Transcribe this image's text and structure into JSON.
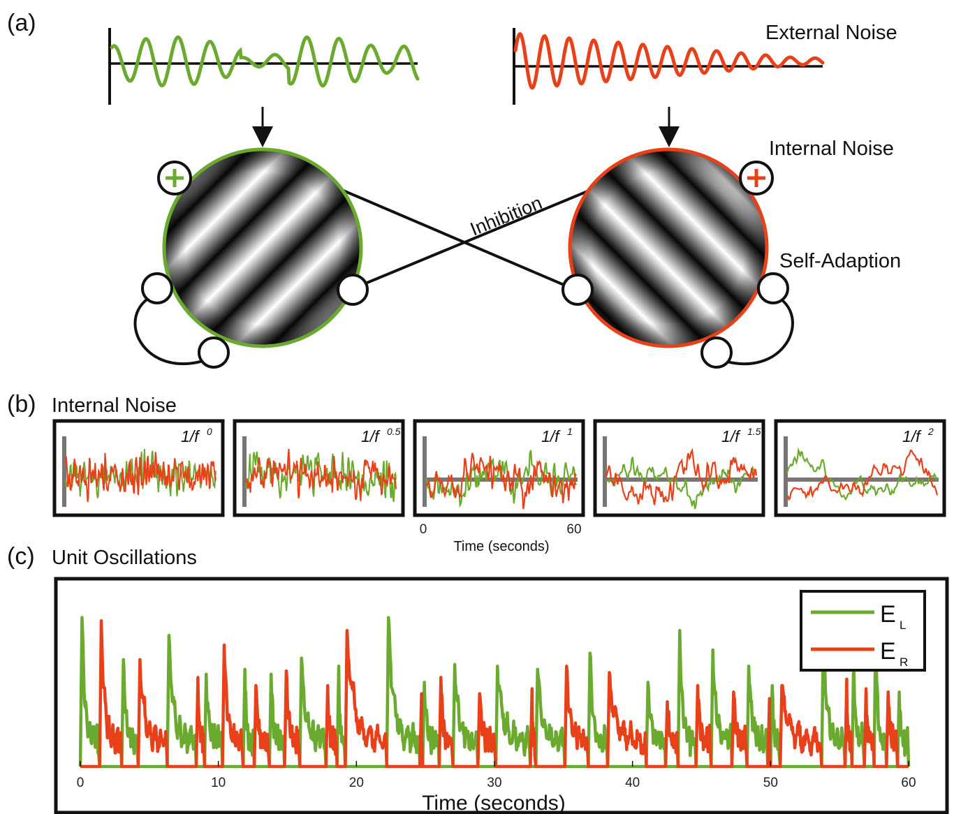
{
  "colors": {
    "left": "#6aaa2e",
    "right": "#e8411a",
    "axis": "#7a7472",
    "black": "#111111"
  },
  "panel_a": {
    "letter": "(a)",
    "external_noise": "External Noise",
    "internal_noise": "Internal Noise",
    "self_adaption": "Self-Adaption",
    "inhibition": "Inhibition",
    "plus": "+"
  },
  "panel_b": {
    "letter": "(b)",
    "title": "Internal Noise",
    "boxes": [
      {
        "base": "1/f",
        "exponent": "0"
      },
      {
        "base": "1/f",
        "exponent": "0.5"
      },
      {
        "base": "1/f",
        "exponent": "1"
      },
      {
        "base": "1/f",
        "exponent": "1.5"
      },
      {
        "base": "1/f",
        "exponent": "2"
      }
    ],
    "x_ticks": [
      "0",
      "60"
    ],
    "xlabel": "Time (seconds)"
  },
  "panel_c": {
    "letter": "(c)",
    "title": "Unit Oscillations",
    "xlabel": "Time (seconds)",
    "legend": [
      {
        "main": "E",
        "sub": "L",
        "color": "#6aaa2e"
      },
      {
        "main": "E",
        "sub": "R",
        "color": "#e8411a"
      }
    ]
  },
  "chart_data": {
    "type": "line",
    "xlabel": "Time (seconds)",
    "ylabel": "",
    "xlim": [
      0,
      60
    ],
    "x_ticks": [
      0,
      10,
      20,
      30,
      40,
      50,
      60
    ],
    "legend_position": "top-right",
    "series": [
      {
        "name": "E_L",
        "color": "#6aaa2e",
        "dominance_periods": [
          [
            0.0,
            1.4
          ],
          [
            3.0,
            4.2
          ],
          [
            6.3,
            8.4
          ],
          [
            9.0,
            10.3
          ],
          [
            11.8,
            12.6
          ],
          [
            13.7,
            14.8
          ],
          [
            15.9,
            17.8
          ],
          [
            18.6,
            19.2
          ],
          [
            22.2,
            24.6
          ],
          [
            24.8,
            26.0
          ],
          [
            27.0,
            28.8
          ],
          [
            30.1,
            32.6
          ],
          [
            33.0,
            35.1
          ],
          [
            36.8,
            38.2
          ],
          [
            41.0,
            42.4
          ],
          [
            43.3,
            44.6
          ],
          [
            45.7,
            47.2
          ],
          [
            48.3,
            49.8
          ],
          [
            50.0,
            50.7
          ],
          [
            53.7,
            55.4
          ],
          [
            55.9,
            56.8
          ],
          [
            57.5,
            58.4
          ],
          [
            59.2,
            60.0
          ]
        ],
        "peaks": [
          [
            0.2,
            0.92
          ],
          [
            3.1,
            0.66
          ],
          [
            6.4,
            0.81
          ],
          [
            9.1,
            0.57
          ],
          [
            11.9,
            0.6
          ],
          [
            13.8,
            0.57
          ],
          [
            16.0,
            0.67
          ],
          [
            18.6,
            0.62
          ],
          [
            22.2,
            0.92
          ],
          [
            24.9,
            0.52
          ],
          [
            27.1,
            0.63
          ],
          [
            30.2,
            0.62
          ],
          [
            33.1,
            0.6
          ],
          [
            36.9,
            0.7
          ],
          [
            41.1,
            0.52
          ],
          [
            43.4,
            0.84
          ],
          [
            45.8,
            0.72
          ],
          [
            48.4,
            0.62
          ],
          [
            50.1,
            0.5
          ],
          [
            53.8,
            0.78
          ],
          [
            56.0,
            0.65
          ],
          [
            57.6,
            0.92
          ],
          [
            59.3,
            0.46
          ]
        ]
      },
      {
        "name": "E_R",
        "color": "#e8411a",
        "dominance_periods": [
          [
            1.4,
            3.0
          ],
          [
            4.2,
            6.3
          ],
          [
            8.4,
            9.0
          ],
          [
            10.3,
            11.8
          ],
          [
            12.6,
            13.7
          ],
          [
            14.8,
            15.9
          ],
          [
            17.8,
            18.6
          ],
          [
            19.2,
            22.2
          ],
          [
            24.6,
            24.8
          ],
          [
            26.0,
            27.0
          ],
          [
            28.8,
            30.1
          ],
          [
            32.6,
            33.0
          ],
          [
            35.1,
            36.8
          ],
          [
            38.2,
            41.0
          ],
          [
            42.4,
            43.3
          ],
          [
            44.6,
            45.7
          ],
          [
            47.2,
            48.3
          ],
          [
            49.8,
            50.0
          ],
          [
            50.7,
            53.7
          ],
          [
            55.4,
            55.9
          ],
          [
            56.8,
            57.5
          ],
          [
            58.4,
            59.2
          ]
        ],
        "peaks": [
          [
            1.6,
            0.9
          ],
          [
            4.4,
            0.66
          ],
          [
            8.6,
            0.55
          ],
          [
            10.6,
            0.75
          ],
          [
            12.8,
            0.5
          ],
          [
            15.0,
            0.59
          ],
          [
            17.9,
            0.5
          ],
          [
            19.5,
            0.84
          ],
          [
            24.6,
            0.45
          ],
          [
            26.2,
            0.55
          ],
          [
            29.0,
            0.45
          ],
          [
            32.7,
            0.48
          ],
          [
            35.2,
            0.62
          ],
          [
            38.4,
            0.58
          ],
          [
            42.5,
            0.4
          ],
          [
            44.8,
            0.5
          ],
          [
            47.3,
            0.46
          ],
          [
            49.9,
            0.42
          ],
          [
            51.2,
            0.5
          ],
          [
            55.5,
            0.54
          ],
          [
            56.9,
            0.48
          ],
          [
            58.5,
            0.46
          ]
        ]
      }
    ]
  }
}
